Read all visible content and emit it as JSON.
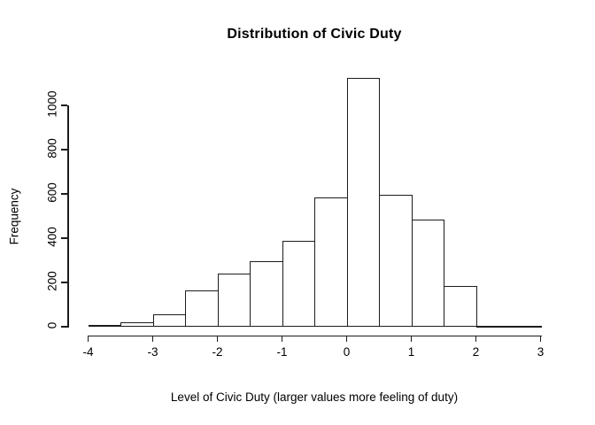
{
  "chart_data": {
    "type": "bar",
    "chart_kind": "histogram",
    "title": "Distribution of Civic Duty",
    "xlabel": "Level of Civic Duty (larger values more feeling of duty)",
    "ylabel": "Frequency",
    "bin_edges": [
      -4,
      -3.5,
      -3,
      -2.5,
      -2,
      -1.5,
      -1,
      -0.5,
      0,
      0.5,
      1,
      1.5,
      2,
      2.5,
      3
    ],
    "frequencies": [
      8,
      22,
      55,
      165,
      242,
      295,
      390,
      585,
      1125,
      595,
      485,
      185,
      5,
      4
    ],
    "x_tick_labels": [
      "-4",
      "-3",
      "-2",
      "-1",
      "0",
      "1",
      "2",
      "3"
    ],
    "x_tick_values": [
      -4,
      -3,
      -2,
      -1,
      0,
      1,
      2,
      3
    ],
    "y_tick_labels": [
      "0",
      "200",
      "400",
      "600",
      "800",
      "1000"
    ],
    "y_tick_values": [
      0,
      200,
      400,
      600,
      800,
      1000
    ],
    "xlim": [
      -4,
      3
    ],
    "ylim": [
      0,
      1150
    ],
    "grid": false,
    "legend": null,
    "bar_fill": "#ffffff",
    "bar_border": "#1c1c1c",
    "axis_color": "#1c1c1c",
    "text_color": "#000000",
    "background": "#ffffff"
  }
}
